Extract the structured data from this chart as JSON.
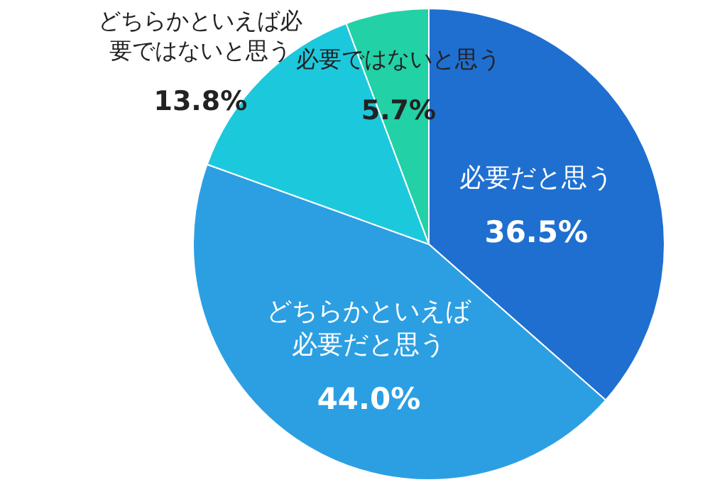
{
  "chart_data": {
    "type": "pie",
    "categories": [
      "必要だと思う",
      "どちらかといえば必要だと思う",
      "どちらかといえば必要ではないと思う",
      "必要ではないと思う"
    ],
    "values": [
      36.5,
      44.0,
      13.8,
      5.7
    ],
    "colors": [
      "#1f6fd0",
      "#2c9fe3",
      "#1cc9dc",
      "#22d1a6"
    ],
    "value_labels": [
      "36.5%",
      "44.0%",
      "13.8%",
      "5.7%"
    ]
  }
}
